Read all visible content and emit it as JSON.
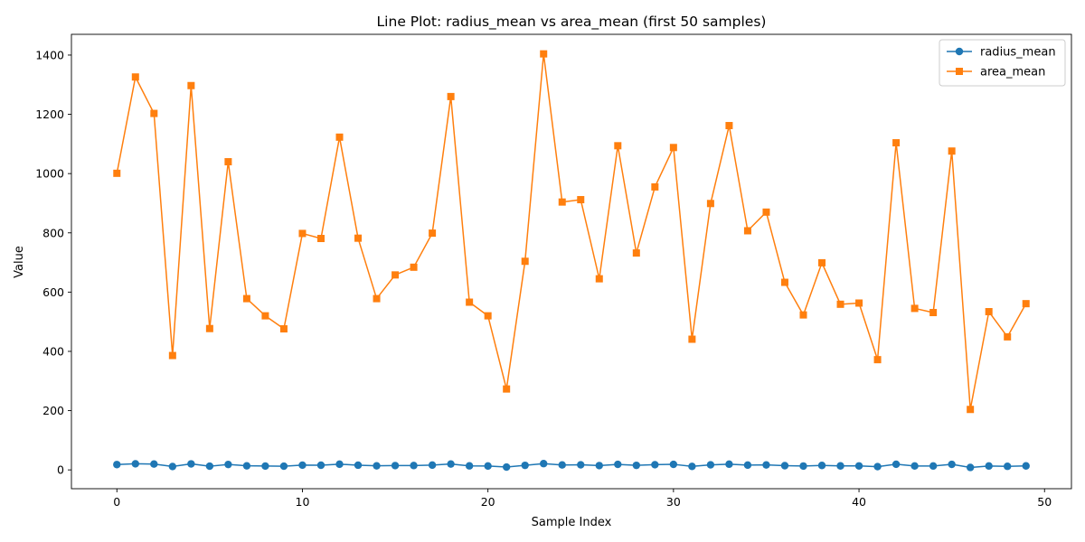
{
  "chart_data": {
    "type": "line",
    "title": "Line Plot: radius_mean vs area_mean (first 50 samples)",
    "xlabel": "Sample Index",
    "ylabel": "Value",
    "xlim": [
      -2.45,
      51.45
    ],
    "ylim": [
      -63.5,
      1470
    ],
    "xticks": [
      0,
      10,
      20,
      30,
      40,
      50
    ],
    "yticks": [
      0,
      200,
      400,
      600,
      800,
      1000,
      1200,
      1400
    ],
    "grid": false,
    "legend_position": "top-right",
    "x": [
      0,
      1,
      2,
      3,
      4,
      5,
      6,
      7,
      8,
      9,
      10,
      11,
      12,
      13,
      14,
      15,
      16,
      17,
      18,
      19,
      20,
      21,
      22,
      23,
      24,
      25,
      26,
      27,
      28,
      29,
      30,
      31,
      32,
      33,
      34,
      35,
      36,
      37,
      38,
      39,
      40,
      41,
      42,
      43,
      44,
      45,
      46,
      47,
      48,
      49
    ],
    "series": [
      {
        "name": "radius_mean",
        "color": "#1f77b4",
        "marker": "circle",
        "values": [
          17.99,
          20.57,
          19.69,
          11.42,
          20.29,
          12.45,
          18.25,
          13.71,
          13.0,
          12.46,
          16.02,
          15.78,
          19.17,
          15.85,
          13.73,
          14.54,
          14.68,
          16.13,
          19.81,
          13.54,
          13.08,
          9.504,
          15.34,
          21.16,
          16.65,
          17.14,
          14.58,
          18.61,
          15.3,
          17.57,
          18.63,
          11.84,
          17.02,
          19.27,
          16.13,
          16.74,
          14.25,
          13.03,
          14.99,
          13.48,
          13.44,
          10.95,
          19.07,
          13.28,
          13.17,
          18.65,
          8.196,
          13.17,
          12.05,
          13.49
        ]
      },
      {
        "name": "area_mean",
        "color": "#ff7f0e",
        "marker": "square",
        "values": [
          1001,
          1326,
          1203,
          386,
          1297,
          477,
          1040,
          578,
          520,
          476,
          798,
          781,
          1123,
          782,
          578,
          658,
          684,
          799,
          1260,
          566,
          520,
          273,
          704,
          1404,
          904,
          912,
          645,
          1094,
          732,
          955,
          1088,
          441,
          899,
          1162,
          807,
          870,
          633,
          523,
          699,
          559,
          563,
          372,
          1104,
          545,
          531,
          1076,
          204,
          534,
          449,
          561
        ]
      }
    ]
  }
}
